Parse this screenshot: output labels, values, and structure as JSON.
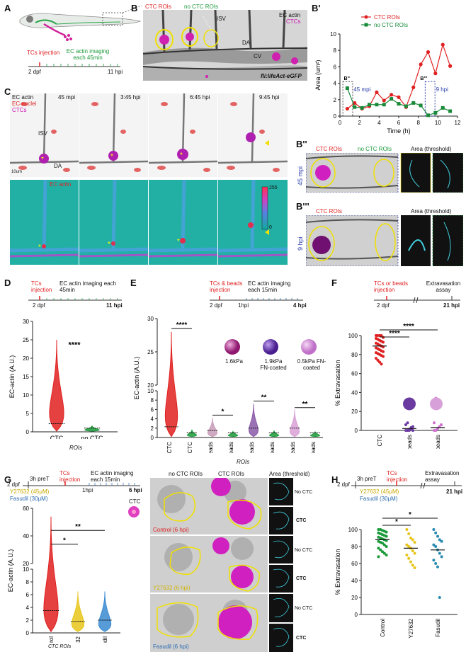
{
  "panels": {
    "A": {
      "letter": "A",
      "injection": "TCs injection",
      "imaging": "EC actin imaging each 45min",
      "t0": "2 dpf",
      "t1": "11 hpi"
    },
    "B": {
      "letter": "B",
      "ctc_rois": "CTC ROIs",
      "no_ctc_rois": "no CTC ROIs",
      "isv": "ISV",
      "da": "DA",
      "cv": "CV",
      "ec_actin": "EC actin",
      "ctcs": "CTCs",
      "line": "fli:lifeAct-eGFP"
    },
    "Bp": {
      "letter": "B'",
      "legend_ctc": "CTC ROIs",
      "legend_noctc": "no CTC ROIs",
      "inset1": "B''",
      "inset2": "B'''",
      "time1": "45 mpi",
      "time2": "9 hpi"
    },
    "C": {
      "letter": "C",
      "ec_actin": "EC actin",
      "ec_nuclei": "EC nuclei",
      "ctcs": "CTCs",
      "times": [
        "45 mpi",
        "3:45 hpi",
        "6:45 hpi",
        "9:45 hpi"
      ],
      "isv": "ISV",
      "da": "DA",
      "scale": "10um",
      "heat_label": "EC actin",
      "scale_max": "255",
      "scale_min": "0"
    },
    "Bpp": {
      "letter": "B''",
      "ctc": "CTC ROIs",
      "noctc": "no CTC ROIs",
      "area": "Area (threshold)",
      "time": "45 mpi"
    },
    "Bppp": {
      "letter": "B'''",
      "ctc": "CTC ROIs",
      "area": "Area (threshold)",
      "time": "9 hpi"
    },
    "D": {
      "letter": "D",
      "injection": "TCs injection",
      "imaging": "EC actin imaging each 45min",
      "t0": "2 dpf",
      "t1": "11 hpi",
      "sig": "****",
      "rois": "ROIs"
    },
    "E": {
      "letter": "E",
      "injection": "TCs & beads injection",
      "imaging": "EC actin imaging each 15min",
      "t0": "2 dpf",
      "t1": "1hpi",
      "t2": "4 hpi",
      "bead1": "1.6kPa",
      "bead2": "1.9kPa FN-coated",
      "bead3": "0.5kPa FN-coated",
      "sig1": "****",
      "sig2": "*",
      "sig3": "**",
      "sig4": "**",
      "rois": "ROIs"
    },
    "F": {
      "letter": "F",
      "injection": "TCs or beads injection",
      "assay": "Extravasation assay",
      "t0": "2 dpf",
      "t1": "21 hpi",
      "sig": "****"
    },
    "G": {
      "letter": "G",
      "t0": "2 dpf",
      "pret": "3h preT",
      "injection": "TCs injection",
      "imaging": "EC actin imaging each 15min",
      "t1": "1hpi",
      "t2": "6 hpi",
      "drug1": "Y27632 (45μM)",
      "drug2": "Fasudil (30μM)",
      "ctc": "CTC",
      "sig1": "*",
      "sig2": "**",
      "rois": "CTC ROIs",
      "col1": "no CTC ROIs",
      "col2": "CTC ROIs",
      "col3": "Area (threshold)",
      "rows": [
        "Control (6 hpi)",
        "Y27632 (6 hpi)",
        "Fasudil (6 hpi)"
      ],
      "nocTC": "No CTC",
      "cTC": "CTC"
    },
    "H": {
      "letter": "H",
      "t0": "2 dpf",
      "pret": "3h preT",
      "injection": "TCs injection",
      "assay": "Extravasation assay",
      "t1": "21 hpi",
      "drug1": "Y27632 (45μM)",
      "drug2": "Fasudil (30μM)",
      "sig1": "*",
      "sig2": "*"
    }
  },
  "chart_data": [
    {
      "id": "Bprime",
      "type": "line",
      "xlabel": "Time (h)",
      "ylabel": "Area (um²)",
      "xlim": [
        0,
        12
      ],
      "ylim": [
        0,
        10
      ],
      "xticks": [
        0,
        2,
        4,
        6,
        8,
        10,
        12
      ],
      "yticks": [
        0,
        2,
        4,
        6,
        8,
        10
      ],
      "series": [
        {
          "name": "CTC ROIs",
          "color": "#e02020",
          "x": [
            0.75,
            1.5,
            2.25,
            3,
            3.75,
            4.5,
            5.25,
            6,
            6.75,
            7.5,
            8.25,
            9,
            9.75,
            10.5,
            11.25
          ],
          "y": [
            0.9,
            1.6,
            0.9,
            1.2,
            2.9,
            1.9,
            2.6,
            2.3,
            1.1,
            3.5,
            6.3,
            7.8,
            5.2,
            8.7,
            6.1
          ]
        },
        {
          "name": "no CTC ROIs",
          "color": "#1a8a3a",
          "x": [
            0.75,
            1.5,
            2.25,
            3,
            3.75,
            4.5,
            5.25,
            6,
            6.75,
            7.5,
            8.25,
            9,
            9.75,
            10.5,
            11.25
          ],
          "y": [
            3.4,
            1.1,
            1.0,
            1.4,
            1.4,
            1.4,
            2.1,
            1.5,
            1.2,
            1.6,
            1.3,
            0.1,
            0.4,
            1.0,
            0.6
          ]
        }
      ]
    },
    {
      "id": "D",
      "type": "violin",
      "ylabel": "EC-actin (A.U.)",
      "ylim": [
        0,
        30
      ],
      "yticks": [
        0,
        5,
        10,
        15,
        20,
        25,
        30
      ],
      "categories": [
        "CTC",
        "no CTC"
      ],
      "medians": [
        2.2,
        1.0
      ],
      "maxima": [
        25,
        1.7
      ],
      "colors": [
        "#e02020",
        "#1a9a3a"
      ]
    },
    {
      "id": "E",
      "type": "violin",
      "ylabel": "EC-actin (A.U.)",
      "ylim_lower": [
        0,
        10
      ],
      "ylim_upper": [
        20,
        30
      ],
      "yticks": [
        0,
        2,
        4,
        6,
        8,
        10,
        20,
        25,
        30
      ],
      "categories": [
        "CTC",
        "no CTC",
        "Beads",
        "no beads",
        "Beads",
        "no beads",
        "Beads",
        "no beads"
      ],
      "medians": [
        2.3,
        1.0,
        1.5,
        1.0,
        2.0,
        1.0,
        2.0,
        1.0
      ],
      "maxima": [
        28,
        1.7,
        4.2,
        1.4,
        7.2,
        1.5,
        6.0,
        1.3
      ],
      "colors": [
        "#e02020",
        "#1a9a3a",
        "#c89ab8",
        "#1a9a3a",
        "#8a5aa8",
        "#1a9a3a",
        "#d9a0d6",
        "#1a9a3a"
      ]
    },
    {
      "id": "F",
      "type": "dot",
      "ylabel": "% Extravasation",
      "ylim": [
        0,
        100
      ],
      "yticks": [
        0,
        20,
        40,
        60,
        80,
        100
      ],
      "categories": [
        "CTC",
        "1.9kPa FN-beads",
        "0.5kPa FN-beads"
      ],
      "means": [
        89,
        2,
        3
      ],
      "colors": [
        "#e02020",
        "#6a3aa0",
        "#d070d0"
      ]
    },
    {
      "id": "G",
      "type": "violin",
      "ylabel": "EC-actin (A.U.)",
      "ylim_lower": [
        0,
        10
      ],
      "ylim_upper": [
        20,
        60
      ],
      "yticks": [
        0,
        2,
        4,
        6,
        8,
        10,
        20,
        40,
        60
      ],
      "categories": [
        "Control",
        "Y27632",
        "Fasudil"
      ],
      "medians": [
        3.5,
        1.8,
        2.0
      ],
      "maxima": [
        54,
        6.5,
        6.5
      ],
      "colors": [
        "#e02020",
        "#e8c51a",
        "#3a8ad0"
      ]
    },
    {
      "id": "H",
      "type": "dot",
      "ylabel": "% Extravasation",
      "ylim": [
        0,
        100
      ],
      "yticks": [
        0,
        20,
        40,
        60,
        80,
        100
      ],
      "categories": [
        "Control",
        "Y27632",
        "Fasudil"
      ],
      "means": [
        88,
        78,
        76
      ],
      "colors": [
        "#1a9a3a",
        "#e8c51a",
        "#2a8ab0"
      ]
    }
  ]
}
